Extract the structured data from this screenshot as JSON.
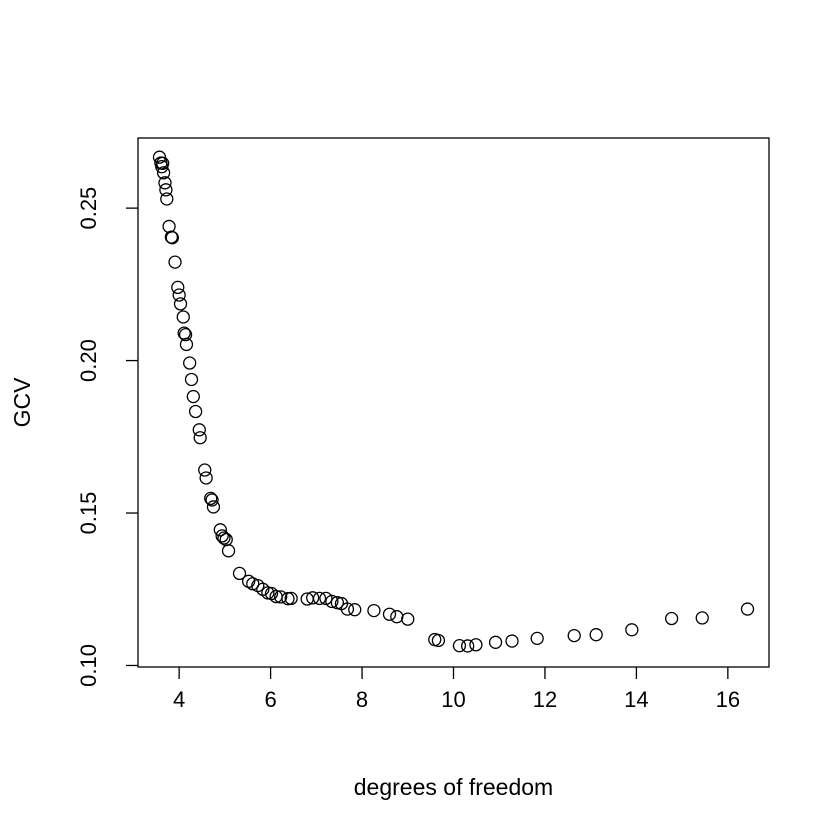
{
  "chart_data": {
    "type": "scatter",
    "title": "",
    "xlabel": "degrees of freedom",
    "ylabel": "GCV",
    "xlim": [
      3.1,
      16.9
    ],
    "ylim": [
      0.0995,
      0.273
    ],
    "xticks": [
      4,
      6,
      8,
      10,
      12,
      14,
      16
    ],
    "xtick_labels": [
      "4",
      "6",
      "8",
      "10",
      "12",
      "14",
      "16"
    ],
    "yticks": [
      0.1,
      0.15,
      0.2,
      0.25
    ],
    "ytick_labels": [
      "0.10",
      "0.15",
      "0.20",
      "0.25"
    ],
    "grid": false,
    "marker": "open-circle",
    "color": "#000000",
    "series": [
      {
        "x": [
          3.57,
          3.6,
          3.62,
          3.64,
          3.66,
          3.69,
          3.71,
          3.73,
          3.78,
          3.83,
          3.85,
          3.91,
          3.97,
          4.0,
          4.03,
          4.09,
          4.11,
          4.14,
          4.16,
          4.23,
          4.27,
          4.31,
          4.36,
          4.44,
          4.46,
          4.56,
          4.59,
          4.69,
          4.72,
          4.75,
          4.9,
          4.94,
          4.98,
          5.03,
          5.08,
          5.32,
          5.52,
          5.61,
          5.72,
          5.83,
          5.94,
          6.02,
          6.12,
          6.22,
          6.38,
          6.45,
          6.8,
          6.92,
          7.07,
          7.21,
          7.34,
          7.46,
          7.55,
          7.68,
          7.84,
          8.26,
          8.6,
          8.76,
          9.0,
          9.59,
          9.67,
          10.13,
          10.31,
          10.49,
          10.92,
          11.28,
          11.83,
          12.64,
          13.12,
          13.9,
          14.77,
          15.44,
          16.43
        ],
        "y": [
          0.2667,
          0.2648,
          0.2636,
          0.2647,
          0.2616,
          0.2583,
          0.256,
          0.253,
          0.244,
          0.2405,
          0.2403,
          0.2323,
          0.224,
          0.2215,
          0.2186,
          0.2143,
          0.209,
          0.2085,
          0.2053,
          0.1992,
          0.1938,
          0.1882,
          0.1833,
          0.1773,
          0.1747,
          0.1641,
          0.1615,
          0.1548,
          0.1543,
          0.152,
          0.1445,
          0.1425,
          0.1418,
          0.1413,
          0.1376,
          0.1302,
          0.1276,
          0.1268,
          0.1262,
          0.125,
          0.1238,
          0.1236,
          0.1226,
          0.1225,
          0.1219,
          0.122,
          0.1218,
          0.1222,
          0.122,
          0.122,
          0.121,
          0.1206,
          0.1203,
          0.1185,
          0.1183,
          0.118,
          0.1168,
          0.116,
          0.1152,
          0.1085,
          0.1082,
          0.1065,
          0.1064,
          0.1068,
          0.1076,
          0.108,
          0.1089,
          0.1098,
          0.1101,
          0.1117,
          0.1154,
          0.1156,
          0.1185
        ]
      }
    ]
  }
}
